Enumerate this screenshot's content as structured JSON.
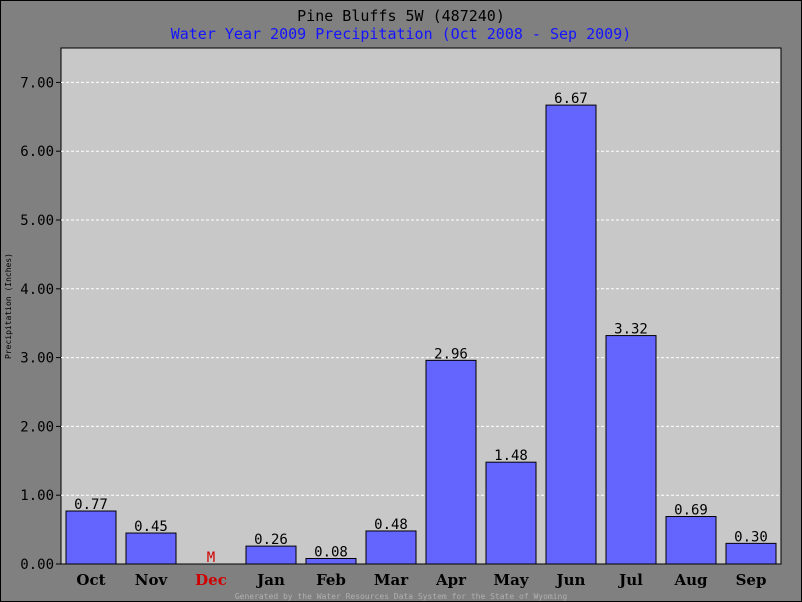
{
  "chart_data": {
    "type": "bar",
    "title": "Pine Bluffs 5W (487240)",
    "subtitle": "Water Year 2009 Precipitation (Oct 2008 - Sep 2009)",
    "ylabel": "Precipitation (Inches)",
    "xlabel": "",
    "categories": [
      "Oct",
      "Nov",
      "Dec",
      "Jan",
      "Feb",
      "Mar",
      "Apr",
      "May",
      "Jun",
      "Jul",
      "Aug",
      "Sep"
    ],
    "values": [
      0.77,
      0.45,
      null,
      0.26,
      0.08,
      0.48,
      2.96,
      1.48,
      6.67,
      3.32,
      0.69,
      0.3
    ],
    "value_labels": [
      "0.77",
      "0.45",
      "M",
      "0.26",
      "0.08",
      "0.48",
      "2.96",
      "1.48",
      "6.67",
      "3.32",
      "0.69",
      "0.30"
    ],
    "missing_categories": [
      "Dec"
    ],
    "ylim": [
      0,
      7.5
    ],
    "yticks": [
      0,
      1,
      2,
      3,
      4,
      5,
      6,
      7
    ],
    "ytick_labels": [
      "0.00",
      "1.00",
      "2.00",
      "3.00",
      "4.00",
      "5.00",
      "6.00",
      "7.00"
    ],
    "grid": true,
    "legend": "none",
    "footer": "Generated by the Water Resources Data System for the State of Wyoming",
    "colors": {
      "bar": "#6464ff",
      "plot_background": "#c8c8c8",
      "page_background": "#808080",
      "subtitle": "#1414ff",
      "missing": "#d10000",
      "footer": "#b0b0b0"
    }
  }
}
